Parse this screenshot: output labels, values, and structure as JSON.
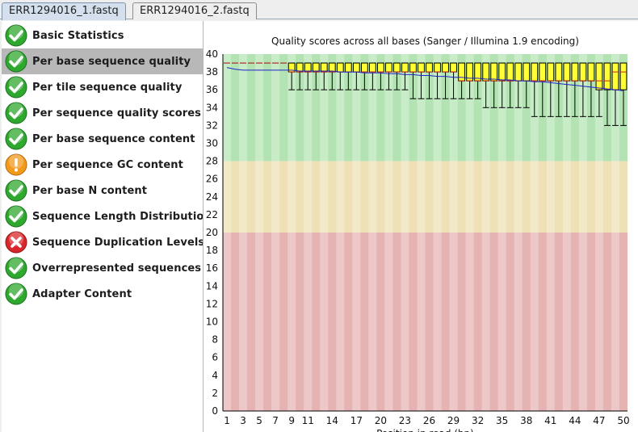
{
  "tabs": [
    {
      "label": "ERR1294016_1.fastq",
      "active": true
    },
    {
      "label": "ERR1294016_2.fastq",
      "active": false
    }
  ],
  "modules": [
    {
      "label": "Basic Statistics",
      "status": "pass",
      "icon": "check-icon"
    },
    {
      "label": "Per base sequence quality",
      "status": "pass",
      "icon": "check-icon",
      "selected": true
    },
    {
      "label": "Per tile sequence quality",
      "status": "pass",
      "icon": "check-icon"
    },
    {
      "label": "Per sequence quality scores",
      "status": "pass",
      "icon": "check-icon"
    },
    {
      "label": "Per base sequence content",
      "status": "pass",
      "icon": "check-icon"
    },
    {
      "label": "Per sequence GC content",
      "status": "warn",
      "icon": "warning-icon"
    },
    {
      "label": "Per base N content",
      "status": "pass",
      "icon": "check-icon"
    },
    {
      "label": "Sequence Length Distribution",
      "status": "pass",
      "icon": "check-icon"
    },
    {
      "label": "Sequence Duplication Levels",
      "status": "fail",
      "icon": "cross-icon"
    },
    {
      "label": "Overrepresented sequences",
      "status": "pass",
      "icon": "check-icon"
    },
    {
      "label": "Adapter Content",
      "status": "pass",
      "icon": "check-icon"
    }
  ],
  "colors": {
    "pass": "#2fa82f",
    "warn": "#f29a1c",
    "fail": "#d9262b",
    "zone_good": "#b3e3b3",
    "zone_warn": "#eee1b5",
    "zone_bad": "#e6b3b3",
    "box_fill": "#ffff33",
    "mean_line": "#2222cc",
    "median_line": "#cc2222"
  },
  "chart_data": {
    "type": "box",
    "title": "Quality scores across all bases (Sanger / Illumina 1.9 encoding)",
    "xlabel": "Position in read (bp)",
    "ylim": [
      0,
      40
    ],
    "y_ticks": [
      "0",
      "2",
      "4",
      "6",
      "8",
      "10",
      "12",
      "14",
      "16",
      "18",
      "20",
      "22",
      "24",
      "26",
      "28",
      "30",
      "32",
      "34",
      "36",
      "38",
      "40"
    ],
    "x_ticks": [
      "1",
      "3",
      "5",
      "7",
      "9",
      "11",
      "14",
      "17",
      "20",
      "23",
      "26",
      "29",
      "32",
      "35",
      "38",
      "41",
      "44",
      "47",
      "50"
    ],
    "zones": [
      {
        "name": "good",
        "from": 28,
        "to": 40
      },
      {
        "name": "warn",
        "from": 20,
        "to": 28
      },
      {
        "name": "bad",
        "from": 0,
        "to": 20
      }
    ],
    "positions": [
      1,
      2,
      3,
      4,
      5,
      6,
      7,
      8,
      9,
      10,
      11,
      12,
      13,
      14,
      15,
      16,
      17,
      18,
      19,
      20,
      21,
      22,
      23,
      24,
      25,
      26,
      27,
      28,
      29,
      30,
      31,
      32,
      33,
      34,
      35,
      36,
      37,
      38,
      39,
      40,
      41,
      42,
      43,
      44,
      45,
      46,
      47,
      48,
      49,
      50
    ],
    "mean": [
      38.5,
      38.3,
      38.2,
      38.2,
      38.2,
      38.2,
      38.2,
      38.2,
      38.2,
      38.1,
      38.1,
      38.1,
      38.1,
      38.1,
      38.0,
      38.0,
      38.0,
      37.9,
      37.9,
      37.9,
      37.8,
      37.8,
      37.7,
      37.7,
      37.6,
      37.6,
      37.5,
      37.5,
      37.4,
      37.4,
      37.3,
      37.3,
      37.2,
      37.2,
      37.1,
      37.1,
      37.0,
      37.0,
      36.9,
      36.9,
      36.8,
      36.7,
      36.6,
      36.5,
      36.4,
      36.3,
      36.2,
      36.1,
      36.0,
      35.9
    ],
    "median": [
      39,
      39,
      39,
      39,
      39,
      39,
      39,
      39,
      38,
      38,
      38,
      38,
      38,
      38,
      38,
      38,
      38,
      38,
      38,
      38,
      38,
      38,
      38,
      38,
      38,
      38,
      38,
      38,
      38,
      37,
      37,
      37,
      37,
      37,
      37,
      37,
      37,
      37,
      37,
      37,
      37,
      37,
      37,
      37,
      37,
      37,
      37,
      37,
      38,
      38
    ],
    "q1": [
      39,
      39,
      39,
      39,
      39,
      39,
      39,
      39,
      38,
      38,
      38,
      38,
      38,
      38,
      38,
      38,
      38,
      38,
      38,
      38,
      38,
      38,
      38,
      38,
      38,
      38,
      38,
      38,
      38,
      37,
      37,
      37,
      37,
      37,
      37,
      37,
      37,
      37,
      37,
      37,
      37,
      37,
      37,
      37,
      37,
      37,
      36,
      36,
      36,
      36
    ],
    "q3": [
      39,
      39,
      39,
      39,
      39,
      39,
      39,
      39,
      39,
      39,
      39,
      39,
      39,
      39,
      39,
      39,
      39,
      39,
      39,
      39,
      39,
      39,
      39,
      39,
      39,
      39,
      39,
      39,
      39,
      39,
      39,
      39,
      39,
      39,
      39,
      39,
      39,
      39,
      39,
      39,
      39,
      39,
      39,
      39,
      39,
      39,
      39,
      39,
      39,
      39
    ],
    "lower_whisker": [
      39,
      39,
      39,
      39,
      39,
      39,
      39,
      39,
      36,
      36,
      36,
      36,
      36,
      36,
      36,
      36,
      36,
      36,
      36,
      36,
      36,
      36,
      36,
      35,
      35,
      35,
      35,
      35,
      35,
      35,
      35,
      35,
      34,
      34,
      34,
      34,
      34,
      34,
      33,
      33,
      33,
      33,
      33,
      33,
      33,
      33,
      33,
      32,
      32,
      32
    ],
    "upper_whisker": [
      39,
      39,
      39,
      39,
      39,
      39,
      39,
      39,
      39,
      39,
      39,
      39,
      39,
      39,
      39,
      39,
      39,
      39,
      39,
      39,
      39,
      39,
      39,
      39,
      39,
      39,
      39,
      39,
      39,
      39,
      39,
      39,
      39,
      39,
      39,
      39,
      39,
      39,
      39,
      39,
      39,
      39,
      39,
      39,
      39,
      39,
      39,
      39,
      39,
      39
    ]
  }
}
